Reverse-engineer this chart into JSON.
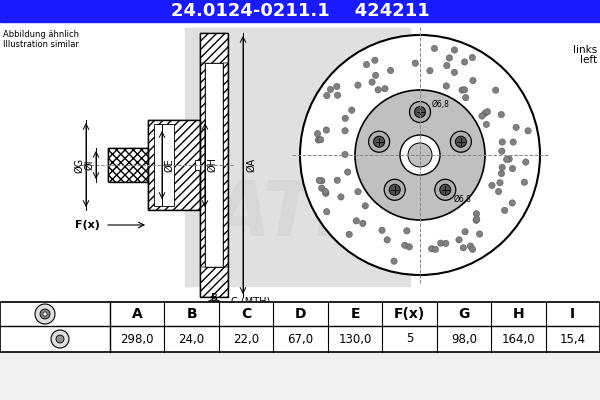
{
  "title_part": "24.0124-0211.1",
  "title_code": "424211",
  "title_bg": "#1a1aff",
  "title_fg": "#ffffff",
  "note_line1": "Abbildung ähnlich",
  "note_line2": "Illustration similar",
  "side_line1": "links",
  "side_line2": "left",
  "table_headers": [
    "A",
    "B",
    "C",
    "D",
    "E",
    "F(x)",
    "G",
    "H",
    "I"
  ],
  "table_values": [
    "298,0",
    "24,0",
    "22,0",
    "67,0",
    "130,0",
    "5",
    "98,0",
    "164,0",
    "15,4"
  ],
  "bg_color": "#f0f0f0",
  "white": "#ffffff",
  "black": "#000000",
  "hatch_color": "#000000",
  "dim_line_color": "#000000",
  "watermark_gray": "#d0d0d0",
  "dot_gray": "#808080",
  "hub_gray": "#c0c0c0"
}
